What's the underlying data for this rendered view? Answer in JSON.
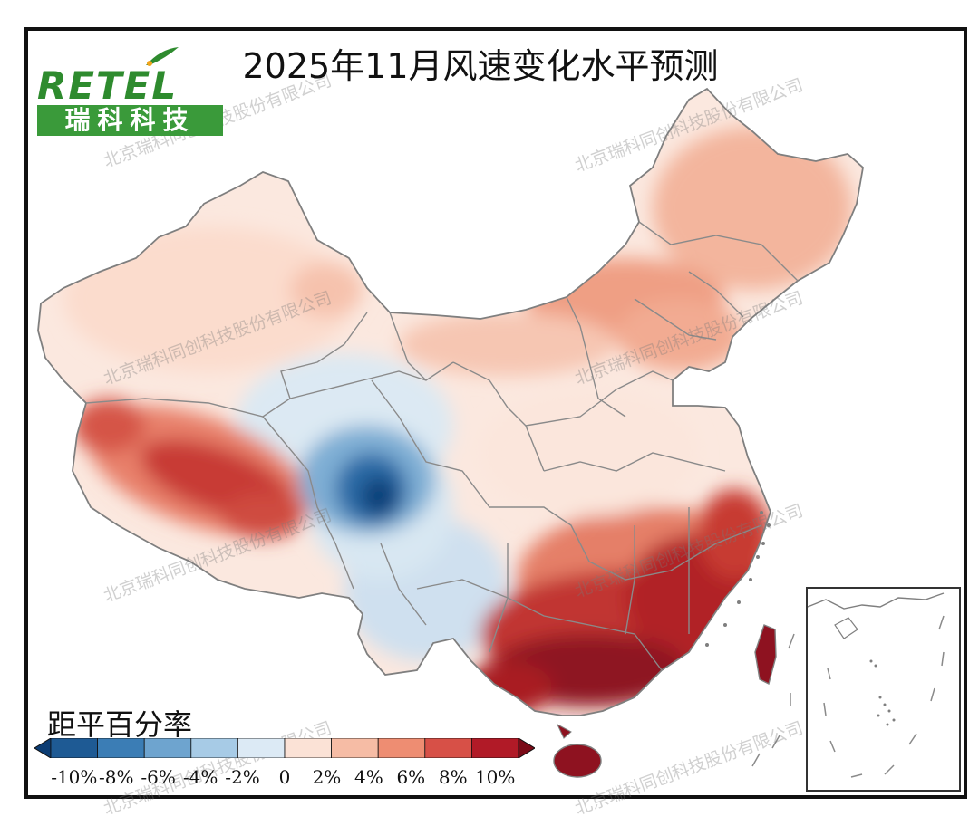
{
  "title": "2025年11月风速变化水平预测",
  "logo": {
    "text_en": "RETEL",
    "text_cn": "瑞科科技"
  },
  "legend": {
    "title": "距平百分率",
    "ticks": [
      "-10%",
      "-8%",
      "-6%",
      "-4%",
      "-2%",
      "0",
      "2%",
      "4%",
      "6%",
      "8%",
      "10%"
    ],
    "colors": [
      "#0b3c73",
      "#1e5a94",
      "#3b7db5",
      "#6ea4cf",
      "#a7cbe6",
      "#dceaf5",
      "#fbe2d6",
      "#f6bca5",
      "#ee8d72",
      "#d75047",
      "#b11a27",
      "#7a0a17"
    ]
  },
  "watermark": "北京瑞科同创科技股份有限公司",
  "colors": {
    "frame": "#111111",
    "logo_green": "#3a9a3a",
    "boundary": "#7f7f7f"
  }
}
